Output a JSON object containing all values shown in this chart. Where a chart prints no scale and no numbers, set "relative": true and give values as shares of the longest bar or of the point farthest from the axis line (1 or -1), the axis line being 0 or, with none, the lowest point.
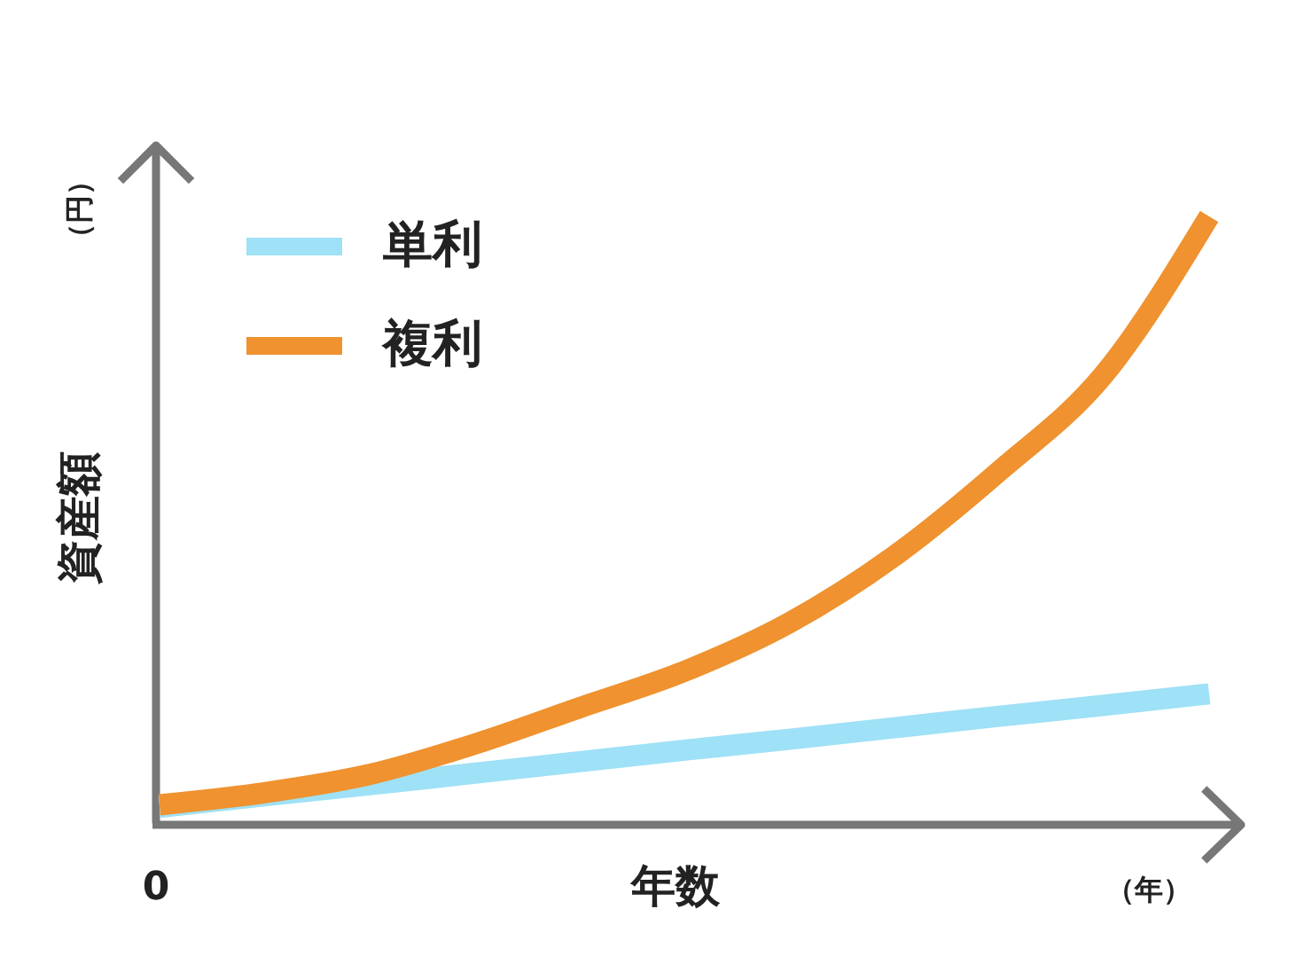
{
  "chart_data": {
    "type": "line",
    "relative": true,
    "categories": [
      null,
      null,
      null,
      null,
      null,
      null,
      null,
      null,
      null,
      null,
      null
    ],
    "series": [
      {
        "name": "単利",
        "color": "#9fe1f6",
        "values": [
          0.026,
          0.045,
          0.063,
          0.082,
          0.101,
          0.12,
          0.138,
          0.157,
          0.176,
          0.194,
          0.213
        ]
      },
      {
        "name": "複利",
        "color": "#ef922f",
        "values": [
          0.03,
          0.05,
          0.08,
          0.13,
          0.19,
          0.25,
          0.33,
          0.44,
          0.58,
          0.74,
          1
        ]
      }
    ],
    "xlabel": "年数",
    "ylabel": "資産額",
    "annotations": [
      "0",
      "（円）",
      "（年）"
    ],
    "legend": "top left",
    "line_style": "solid"
  }
}
